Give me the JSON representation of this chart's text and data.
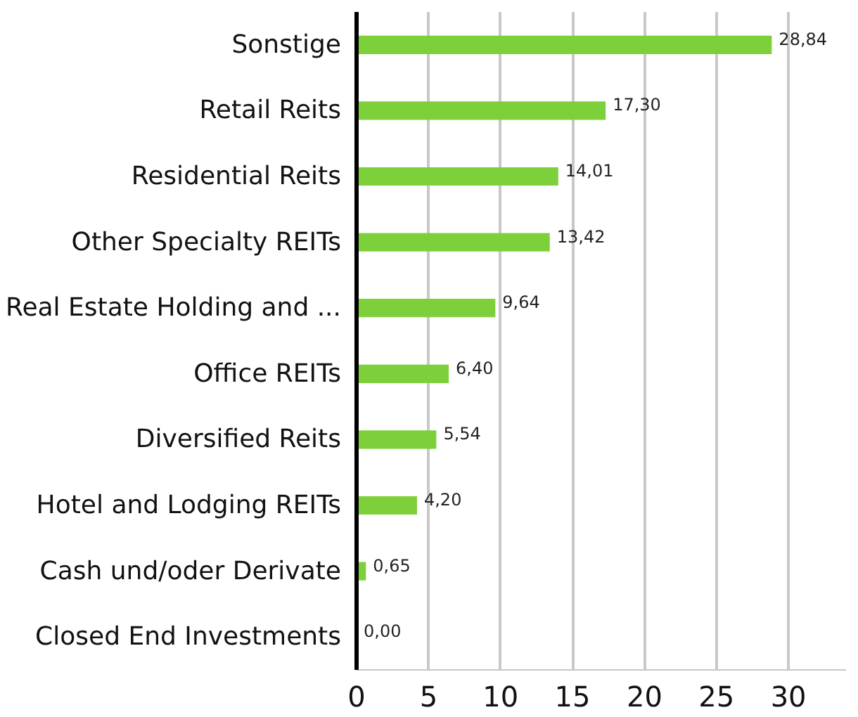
{
  "chart_data": {
    "type": "bar",
    "orientation": "horizontal",
    "categories": [
      "Sonstige",
      "Retail Reits",
      "Residential Reits",
      "Other Specialty REITs",
      "Real Estate Holding and ...",
      "Office REITs",
      "Diversified Reits",
      "Hotel and Lodging REITs",
      "Cash und/oder Derivate",
      "Closed End Investments"
    ],
    "values": [
      28.84,
      17.3,
      14.01,
      13.42,
      9.64,
      6.4,
      5.54,
      4.2,
      0.65,
      0.0
    ],
    "value_labels": [
      "28,84",
      "17,30",
      "14,01",
      "13,42",
      "9,64",
      "6,40",
      "5,54",
      "4,20",
      "0,65",
      "0,00"
    ],
    "color": "#7ed03a",
    "xlim": [
      0,
      34
    ],
    "xticks": [
      0,
      5,
      10,
      15,
      20,
      25,
      30
    ],
    "grid": "x"
  }
}
